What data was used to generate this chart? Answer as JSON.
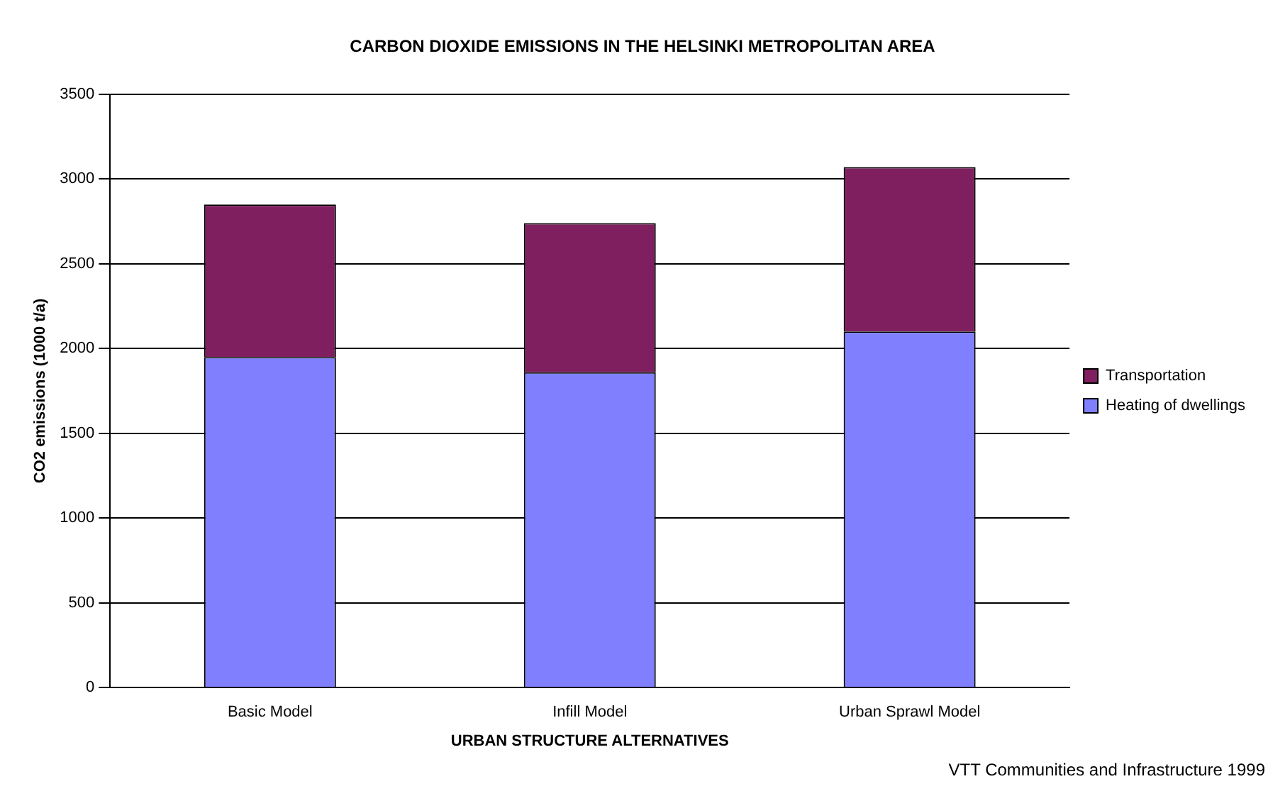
{
  "chart_data": {
    "type": "bar",
    "title": "CARBON DIOXIDE EMISSIONS IN THE HELSINKI METROPOLITAN AREA",
    "xlabel": "URBAN STRUCTURE ALTERNATIVES",
    "ylabel": "CO2 emissions (1000 t/a)",
    "annotations": [
      "VTT Communities and Infrastructure 1999"
    ],
    "categories": [
      "Basic Model",
      "Infill Model",
      "Urban Sprawl Model"
    ],
    "series": [
      {
        "name": "Heating of dwellings",
        "color": "#8080ff",
        "values": [
          1950,
          1860,
          2100
        ]
      },
      {
        "name": "Transportation",
        "color": "#7f1f5f",
        "values": [
          900,
          880,
          970
        ]
      }
    ],
    "stacked": true,
    "ylim": [
      0,
      3500
    ],
    "yticks": [
      0,
      500,
      1000,
      1500,
      2000,
      2500,
      3000,
      3500
    ],
    "grid": "y",
    "legend": "right"
  }
}
